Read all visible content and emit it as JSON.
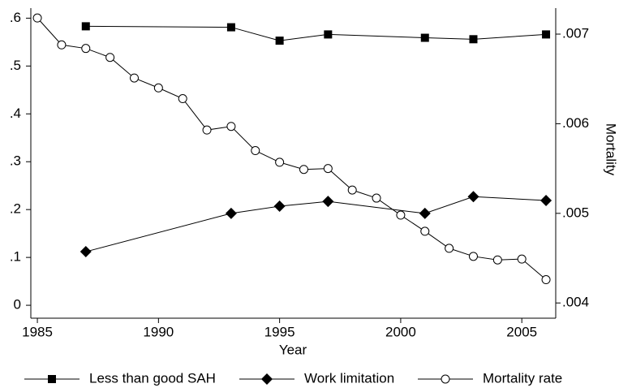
{
  "chart_data": {
    "type": "line",
    "x_label": "Year",
    "y2_label": "Mortality",
    "xlim": [
      1984.73,
      2006.4
    ],
    "xticks": [
      1985,
      1990,
      1995,
      2000,
      2005
    ],
    "ylim": [
      -0.027,
      0.621
    ],
    "yticks": [
      0,
      {
        "value": 0.1,
        "label": ".1"
      },
      {
        "value": 0.2,
        "label": ".2"
      },
      {
        "value": 0.3,
        "label": ".3"
      },
      {
        "value": 0.4,
        "label": ".4"
      },
      {
        "value": 0.5,
        "label": ".5"
      },
      {
        "value": 0.6,
        "label": ".6"
      }
    ],
    "y2lim": [
      0.00383,
      0.00729
    ],
    "y2ticks": [
      {
        "value": 0.004,
        "label": ".004"
      },
      {
        "value": 0.005,
        "label": ".005"
      },
      {
        "value": 0.006,
        "label": ".006"
      },
      {
        "value": 0.007,
        "label": ".007"
      }
    ],
    "legend": "bottom",
    "series": [
      {
        "name": "Less than good SAH",
        "color": "#000000",
        "marker": "square",
        "x": [
          1987,
          1993,
          1995,
          1997,
          2001,
          2003,
          2006
        ],
        "values": [
          0.583,
          0.581,
          0.553,
          0.566,
          0.559,
          0.556,
          0.566
        ]
      },
      {
        "name": "Work limitation",
        "color": "#000000",
        "marker": "diamond",
        "x": [
          1987,
          1993,
          1995,
          1997,
          2001,
          2003,
          2006
        ],
        "values": [
          0.112,
          0.192,
          0.207,
          0.217,
          0.192,
          0.227,
          0.219
        ]
      },
      {
        "name": "Mortality rate",
        "color": "#000000",
        "marker": "circle",
        "axis": "y2",
        "x": [
          1985,
          1986,
          1987,
          1988,
          1989,
          1990,
          1991,
          1992,
          1993,
          1994,
          1995,
          1996,
          1997,
          1998,
          1999,
          2000,
          2001,
          2002,
          2003,
          2004,
          2005,
          2006
        ],
        "values": [
          0.00718,
          0.00688,
          0.00684,
          0.00674,
          0.00651,
          0.0064,
          0.00628,
          0.00593,
          0.00597,
          0.0057,
          0.00557,
          0.00549,
          0.0055,
          0.00526,
          0.00517,
          0.00498,
          0.0048,
          0.00461,
          0.00452,
          0.00448,
          0.00449,
          0.00426
        ]
      }
    ]
  }
}
